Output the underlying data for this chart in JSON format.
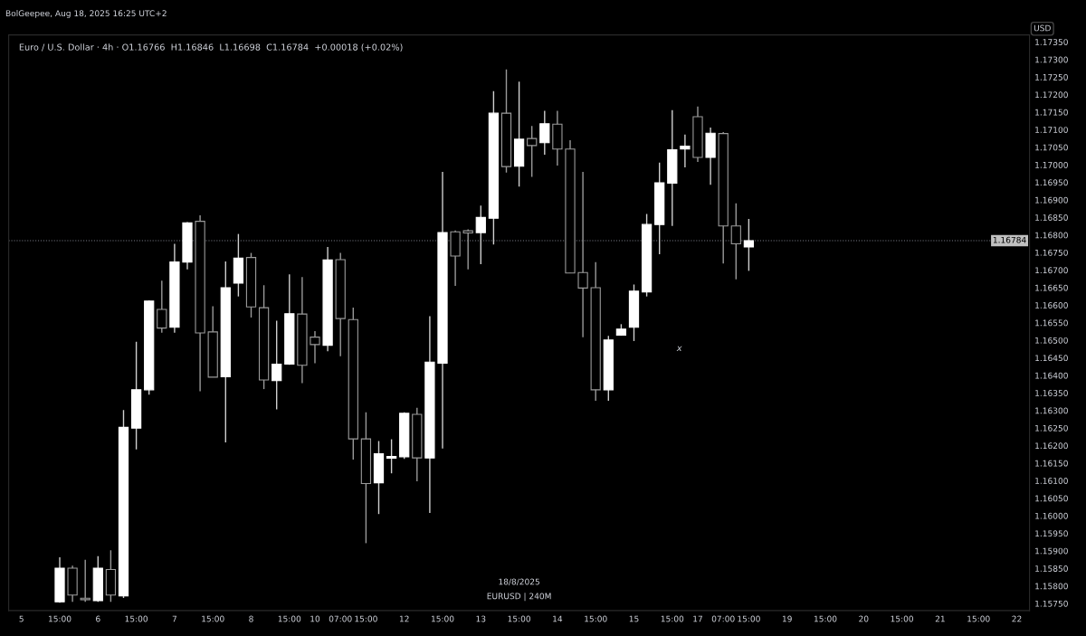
{
  "chart_data": {
    "type": "candlestick",
    "title": "Euro / U.S. Dollar · 4h · O1.16766  H1.16846  L1.16698  C1.16784  +0.00018 (+0.02%)",
    "ylabel": "USD",
    "annotations": [
      "BolGeepee, Aug 18, 2025 16:25 UTC+2",
      "18/8/2025",
      "EURUSD | 240M",
      "x"
    ],
    "categories": [
      "5",
      null,
      null,
      "15:00",
      null,
      null,
      "6",
      null,
      null,
      "15:00",
      null,
      null,
      "7",
      null,
      null,
      "15:00",
      null,
      null,
      "8",
      null,
      null,
      "15:00",
      null,
      "10",
      null,
      "07:00",
      null,
      "15:00",
      null,
      null,
      "12",
      null,
      null,
      "15:00",
      null,
      null,
      "13",
      null,
      null,
      "15:00",
      null,
      null,
      "14",
      null,
      null,
      "15:00",
      null,
      null,
      "15",
      null,
      null,
      "15:00",
      null,
      "17",
      null,
      "07:00",
      null,
      "15:00",
      null,
      null,
      "19",
      null,
      null,
      "15:00",
      null,
      null,
      "20",
      null,
      null,
      "15:00",
      null,
      null,
      "21",
      null,
      null,
      "15:00",
      null,
      null,
      "22"
    ],
    "ohlc": [
      null,
      null,
      null,
      [
        1.15755,
        1.15882,
        1.15752,
        1.15851
      ],
      [
        1.15851,
        1.15858,
        1.15755,
        1.15774
      ],
      [
        1.15765,
        1.15875,
        1.15755,
        1.15761
      ],
      [
        1.15758,
        1.15885,
        1.15755,
        1.15851
      ],
      [
        1.15847,
        1.15902,
        1.15755,
        1.15774
      ],
      [
        1.15772,
        1.16301,
        1.15766,
        1.16252
      ],
      [
        1.1625,
        1.16496,
        1.16189,
        1.16359
      ],
      [
        1.16359,
        1.16614,
        1.16345,
        1.16612
      ],
      [
        1.16588,
        1.1667,
        1.16522,
        1.16535
      ],
      [
        1.16537,
        1.16775,
        1.16522,
        1.16723
      ],
      [
        1.16723,
        1.16837,
        1.16702,
        1.16835
      ],
      [
        1.16839,
        1.16856,
        1.16355,
        1.16521
      ],
      [
        1.16524,
        1.16597,
        1.16395,
        1.16395
      ],
      [
        1.16396,
        1.16725,
        1.16209,
        1.1665
      ],
      [
        1.16663,
        1.16803,
        1.16625,
        1.16734
      ],
      [
        1.16736,
        1.16749,
        1.16565,
        1.16595
      ],
      [
        1.16593,
        1.16657,
        1.16361,
        1.16387
      ],
      [
        1.16385,
        1.16556,
        1.16303,
        1.16432
      ],
      [
        1.16432,
        1.16688,
        1.1643,
        1.16576
      ],
      [
        1.16575,
        1.1668,
        1.16378,
        1.16429
      ],
      [
        1.16509,
        1.16526,
        1.16435,
        1.16488
      ],
      [
        1.16486,
        1.16766,
        1.16469,
        1.16729
      ],
      [
        1.1673,
        1.16749,
        1.16455,
        1.16562
      ],
      [
        1.16559,
        1.16593,
        1.1616,
        1.16219
      ],
      [
        1.16219,
        1.16295,
        1.15922,
        1.16092
      ],
      [
        1.16094,
        1.16213,
        1.16005,
        1.16177
      ],
      [
        1.16164,
        1.16218,
        1.16121,
        1.16169
      ],
      [
        1.16168,
        1.16295,
        1.16162,
        1.16292
      ],
      [
        1.16289,
        1.16308,
        1.16098,
        1.16165
      ],
      [
        1.16165,
        1.16569,
        1.16008,
        1.16438
      ],
      [
        1.16435,
        1.1698,
        1.16192,
        1.16807
      ],
      [
        1.16809,
        1.16813,
        1.16655,
        1.1674
      ],
      [
        1.16812,
        1.16816,
        1.16702,
        1.16806
      ],
      [
        1.16807,
        1.16884,
        1.16717,
        1.1685
      ],
      [
        1.16848,
        1.1721,
        1.16773,
        1.17147
      ],
      [
        1.17147,
        1.17272,
        1.16978,
        1.16995
      ],
      [
        1.16996,
        1.17237,
        1.16938,
        1.17073
      ],
      [
        1.17075,
        1.17111,
        1.16966,
        1.17055
      ],
      [
        1.17063,
        1.17154,
        1.17029,
        1.17117
      ],
      [
        1.17116,
        1.17154,
        1.16998,
        1.17045
      ],
      [
        1.17045,
        1.1707,
        1.16692,
        1.16692
      ],
      [
        1.16693,
        1.1698,
        1.16509,
        1.16649
      ],
      [
        1.1665,
        1.16723,
        1.16328,
        1.16359
      ],
      [
        1.16359,
        1.16513,
        1.16328,
        1.16501
      ],
      [
        1.16515,
        1.16546,
        1.16513,
        1.16532
      ],
      [
        1.16537,
        1.16659,
        1.16498,
        1.1664
      ],
      [
        1.16638,
        1.1686,
        1.16625,
        1.1683
      ],
      [
        1.1683,
        1.17006,
        1.16745,
        1.16949
      ],
      [
        1.16948,
        1.17156,
        1.16826,
        1.17043
      ],
      [
        1.17045,
        1.17086,
        1.16993,
        1.17053
      ],
      [
        1.17137,
        1.17166,
        1.17008,
        1.17021
      ],
      [
        1.17021,
        1.17106,
        1.16943,
        1.1709
      ],
      [
        1.17089,
        1.17093,
        1.16719,
        1.16826
      ],
      [
        1.16826,
        1.1689,
        1.16674,
        1.16775
      ],
      [
        1.16766,
        1.16846,
        1.16698,
        1.16784
      ],
      null,
      null,
      null,
      null,
      null,
      null,
      null,
      null,
      null,
      null,
      null,
      null,
      null,
      null,
      null,
      null,
      null,
      null,
      null,
      null,
      null
    ],
    "ylim": [
      1.1573,
      1.1737
    ],
    "yticks": [
      {
        "value": 1.1575,
        "label": "1.15750"
      },
      {
        "value": 1.158,
        "label": "1.15800"
      },
      {
        "value": 1.1585,
        "label": "1.15850"
      },
      {
        "value": 1.159,
        "label": "1.15900"
      },
      {
        "value": 1.1595,
        "label": "1.15950"
      },
      {
        "value": 1.16,
        "label": "1.16000"
      },
      {
        "value": 1.1605,
        "label": "1.16050"
      },
      {
        "value": 1.161,
        "label": "1.16100"
      },
      {
        "value": 1.1615,
        "label": "1.16150"
      },
      {
        "value": 1.162,
        "label": "1.16200"
      },
      {
        "value": 1.1625,
        "label": "1.16250"
      },
      {
        "value": 1.163,
        "label": "1.16300"
      },
      {
        "value": 1.1635,
        "label": "1.16350"
      },
      {
        "value": 1.164,
        "label": "1.16400"
      },
      {
        "value": 1.1645,
        "label": "1.16450"
      },
      {
        "value": 1.165,
        "label": "1.16500"
      },
      {
        "value": 1.1655,
        "label": "1.16550"
      },
      {
        "value": 1.166,
        "label": "1.16600"
      },
      {
        "value": 1.1665,
        "label": "1.16650"
      },
      {
        "value": 1.167,
        "label": "1.16700"
      },
      {
        "value": 1.1675,
        "label": "1.16750"
      },
      {
        "value": 1.168,
        "label": "1.16800"
      },
      {
        "value": 1.1685,
        "label": "1.16850"
      },
      {
        "value": 1.169,
        "label": "1.16900"
      },
      {
        "value": 1.1695,
        "label": "1.16950"
      },
      {
        "value": 1.17,
        "label": "1.17000"
      },
      {
        "value": 1.1705,
        "label": "1.17050"
      },
      {
        "value": 1.171,
        "label": "1.17100"
      },
      {
        "value": 1.1715,
        "label": "1.17150"
      },
      {
        "value": 1.172,
        "label": "1.17200"
      },
      {
        "value": 1.1725,
        "label": "1.17250"
      },
      {
        "value": 1.173,
        "label": "1.17300"
      },
      {
        "value": 1.1735,
        "label": "1.17350"
      }
    ],
    "ref_lines": [
      {
        "axis": "y",
        "value": 1.16784,
        "label": "1.16784",
        "line_style": "dotted",
        "color": "#787b86"
      }
    ],
    "grid": false,
    "legend": false
  }
}
